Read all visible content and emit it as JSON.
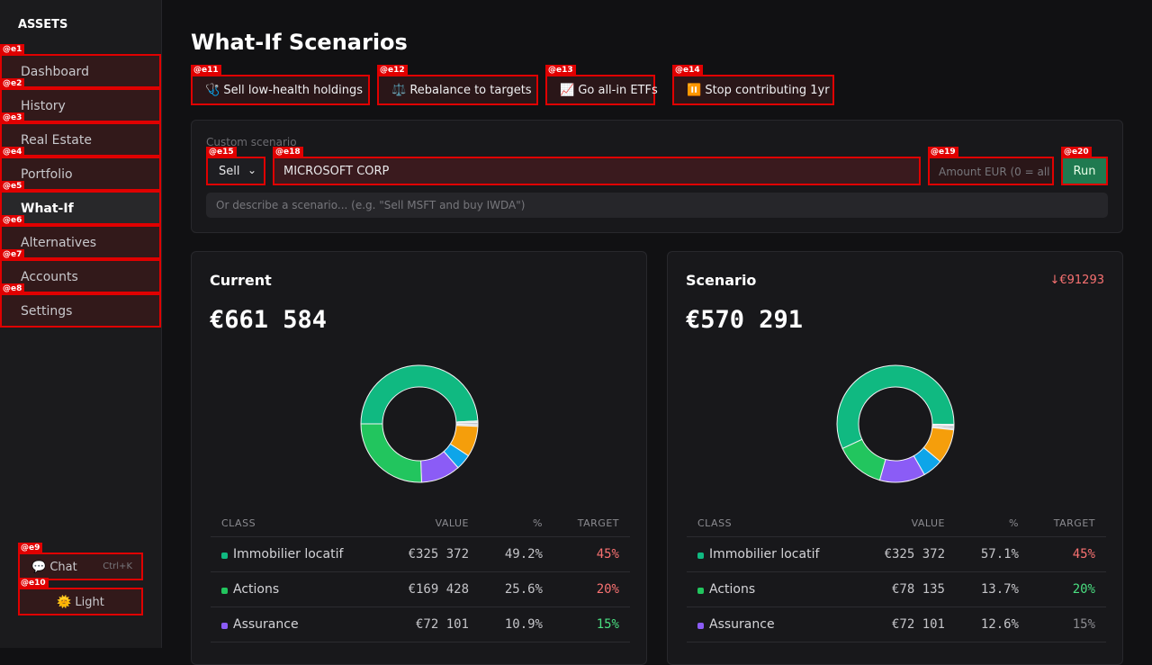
{
  "sidebar": {
    "heading": "ASSETS",
    "items": [
      {
        "tag": "@e1",
        "label": "Dashboard",
        "active": false
      },
      {
        "tag": "@e2",
        "label": "History",
        "active": false
      },
      {
        "tag": "@e3",
        "label": "Real Estate",
        "active": false
      },
      {
        "tag": "@e4",
        "label": "Portfolio",
        "active": false
      },
      {
        "tag": "@e5",
        "label": "What-If",
        "active": true
      },
      {
        "tag": "@e6",
        "label": "Alternatives",
        "active": false
      },
      {
        "tag": "@e7",
        "label": "Accounts",
        "active": false
      },
      {
        "tag": "@e8",
        "label": "Settings",
        "active": false
      }
    ],
    "chat": {
      "tag": "@e9",
      "label": "💬 Chat",
      "shortcut": "Ctrl+K"
    },
    "theme": {
      "tag": "@e10",
      "label": "🌞 Light"
    }
  },
  "page": {
    "title": "What-If Scenarios",
    "presets": [
      {
        "tag": "@e11",
        "label": "🩺 Sell low-health holdings"
      },
      {
        "tag": "@e12",
        "label": "⚖️ Rebalance to targets"
      },
      {
        "tag": "@e13",
        "label": "📈 Go all-in ETFs"
      },
      {
        "tag": "@e14",
        "label": "⏸️ Stop contributing 1yr"
      }
    ],
    "custom": {
      "label": "Custom scenario",
      "action": {
        "tag": "@e15",
        "value": "Sell"
      },
      "holding": {
        "tag": "@e18",
        "value": "MICROSOFT CORP"
      },
      "amount": {
        "tag": "@e19",
        "placeholder": "Amount EUR (0 = all)"
      },
      "run": {
        "tag": "@e20",
        "label": "Run"
      },
      "describe": {
        "placeholder": "Or describe a scenario... (e.g. \"Sell MSFT and buy IWDA\")"
      }
    },
    "cards": [
      {
        "title": "Current",
        "total": "€661 584",
        "donut": {
          "values": [
            49.2,
            0.5,
            0.5,
            0.5,
            8.5,
            4.3,
            10.9,
            25.6
          ],
          "colors": [
            "#10b981",
            "#e5e7eb",
            "#9ca3af",
            "#d1d5db",
            "#f59e0b",
            "#0ea5e9",
            "#8b5cf6",
            "#22c55e"
          ]
        },
        "columns": [
          "CLASS",
          "VALUE",
          "%",
          "TARGET"
        ],
        "rows": [
          {
            "dot": "#10b981",
            "class": "Immobilier locatif",
            "value": "€325 372",
            "pct": "49.2%",
            "target": "45%",
            "target_color": "#f87171"
          },
          {
            "dot": "#22c55e",
            "class": "Actions",
            "value": "€169 428",
            "pct": "25.6%",
            "target": "20%",
            "target_color": "#f87171"
          },
          {
            "dot": "#8b5cf6",
            "class": "Assurance",
            "value": "€72 101",
            "pct": "10.9%",
            "target": "15%",
            "target_color": "#4ade80"
          }
        ]
      },
      {
        "title": "Scenario",
        "delta": "↓€91293",
        "total": "€570 291",
        "donut": {
          "values": [
            57.1,
            0.5,
            0.5,
            0.5,
            9.5,
            5.6,
            12.6,
            13.7
          ],
          "colors": [
            "#10b981",
            "#e5e7eb",
            "#9ca3af",
            "#d1d5db",
            "#f59e0b",
            "#0ea5e9",
            "#8b5cf6",
            "#22c55e"
          ]
        },
        "columns": [
          "CLASS",
          "VALUE",
          "%",
          "TARGET"
        ],
        "rows": [
          {
            "dot": "#10b981",
            "class": "Immobilier locatif",
            "value": "€325 372",
            "pct": "57.1%",
            "target": "45%",
            "target_color": "#f87171"
          },
          {
            "dot": "#22c55e",
            "class": "Actions",
            "value": "€78 135",
            "pct": "13.7%",
            "target": "20%",
            "target_color": "#4ade80"
          },
          {
            "dot": "#8b5cf6",
            "class": "Assurance",
            "value": "€72 101",
            "pct": "12.6%",
            "target": "15%",
            "target_color": "#8b8b90"
          }
        ]
      }
    ]
  }
}
